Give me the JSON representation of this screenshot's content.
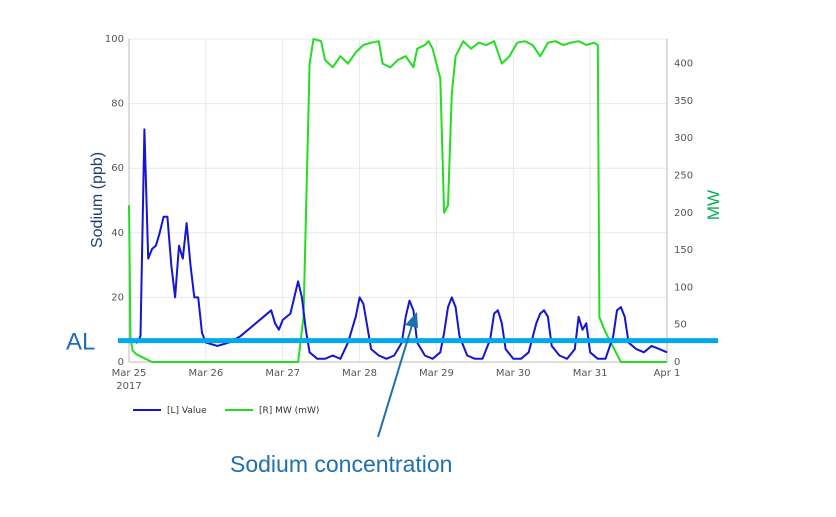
{
  "chart_data": {
    "type": "line",
    "y_left": {
      "label": "Sodium (ppb)",
      "range": [
        0,
        100
      ],
      "ticks": [
        0,
        20,
        40,
        60,
        80,
        100
      ]
    },
    "y_right": {
      "label": "MW",
      "range": [
        0,
        433
      ],
      "ticks": [
        0,
        50,
        100,
        150,
        200,
        250,
        300,
        350,
        400
      ]
    },
    "x": {
      "range": [
        0,
        7
      ],
      "ticks": [
        {
          "pos": 0,
          "label": "Mar 25",
          "sub": "2017"
        },
        {
          "pos": 1,
          "label": "Mar 26",
          "sub": ""
        },
        {
          "pos": 2,
          "label": "Mar 27",
          "sub": ""
        },
        {
          "pos": 3,
          "label": "Mar 28",
          "sub": ""
        },
        {
          "pos": 4,
          "label": "Mar 29",
          "sub": ""
        },
        {
          "pos": 5,
          "label": "Mar 30",
          "sub": ""
        },
        {
          "pos": 6,
          "label": "Mar 31",
          "sub": ""
        },
        {
          "pos": 7,
          "label": "Apr 1",
          "sub": ""
        }
      ]
    },
    "grid": true,
    "series": [
      {
        "name": "[L] Value",
        "axis": "left",
        "color": "#1515d6",
        "points": [
          [
            0,
            7
          ],
          [
            0.05,
            7
          ],
          [
            0.1,
            6
          ],
          [
            0.15,
            8
          ],
          [
            0.2,
            72
          ],
          [
            0.25,
            32
          ],
          [
            0.3,
            35
          ],
          [
            0.35,
            36
          ],
          [
            0.4,
            40
          ],
          [
            0.45,
            45
          ],
          [
            0.5,
            45
          ],
          [
            0.55,
            30
          ],
          [
            0.6,
            20
          ],
          [
            0.65,
            36
          ],
          [
            0.7,
            32
          ],
          [
            0.75,
            43
          ],
          [
            0.8,
            30
          ],
          [
            0.85,
            20
          ],
          [
            0.9,
            20
          ],
          [
            0.95,
            9
          ],
          [
            1.0,
            6
          ],
          [
            1.15,
            5
          ],
          [
            1.3,
            6
          ],
          [
            1.45,
            8
          ],
          [
            1.6,
            11
          ],
          [
            1.75,
            14
          ],
          [
            1.85,
            16
          ],
          [
            1.9,
            12
          ],
          [
            1.95,
            10
          ],
          [
            2.0,
            13
          ],
          [
            2.1,
            15
          ],
          [
            2.2,
            25
          ],
          [
            2.25,
            20
          ],
          [
            2.3,
            10
          ],
          [
            2.35,
            3
          ],
          [
            2.45,
            1
          ],
          [
            2.55,
            1
          ],
          [
            2.65,
            2
          ],
          [
            2.75,
            1
          ],
          [
            2.85,
            6
          ],
          [
            2.95,
            14
          ],
          [
            3.0,
            20
          ],
          [
            3.05,
            18
          ],
          [
            3.1,
            11
          ],
          [
            3.15,
            4
          ],
          [
            3.25,
            2
          ],
          [
            3.35,
            1
          ],
          [
            3.45,
            2
          ],
          [
            3.55,
            6
          ],
          [
            3.6,
            14
          ],
          [
            3.65,
            19
          ],
          [
            3.7,
            16
          ],
          [
            3.75,
            6
          ],
          [
            3.85,
            2
          ],
          [
            3.95,
            1
          ],
          [
            4.05,
            3
          ],
          [
            4.1,
            9
          ],
          [
            4.15,
            17
          ],
          [
            4.2,
            20
          ],
          [
            4.25,
            17
          ],
          [
            4.3,
            8
          ],
          [
            4.4,
            2
          ],
          [
            4.5,
            1
          ],
          [
            4.6,
            1
          ],
          [
            4.7,
            7
          ],
          [
            4.75,
            15
          ],
          [
            4.8,
            16
          ],
          [
            4.85,
            12
          ],
          [
            4.9,
            4
          ],
          [
            5.0,
            1
          ],
          [
            5.1,
            1
          ],
          [
            5.2,
            3
          ],
          [
            5.3,
            12
          ],
          [
            5.35,
            15
          ],
          [
            5.4,
            16
          ],
          [
            5.45,
            14
          ],
          [
            5.5,
            5
          ],
          [
            5.6,
            2
          ],
          [
            5.7,
            1
          ],
          [
            5.8,
            4
          ],
          [
            5.85,
            14
          ],
          [
            5.9,
            10
          ],
          [
            5.95,
            12
          ],
          [
            6.0,
            3
          ],
          [
            6.1,
            1
          ],
          [
            6.2,
            1
          ],
          [
            6.3,
            8
          ],
          [
            6.35,
            16
          ],
          [
            6.4,
            17
          ],
          [
            6.45,
            14
          ],
          [
            6.5,
            6
          ],
          [
            6.6,
            4
          ],
          [
            6.7,
            3
          ],
          [
            6.8,
            5
          ],
          [
            6.9,
            4
          ],
          [
            7.0,
            3
          ]
        ]
      },
      {
        "name": "[R] MW (mW)",
        "axis": "right",
        "color": "#22dd22",
        "points": [
          [
            0,
            210
          ],
          [
            0.02,
            30
          ],
          [
            0.05,
            15
          ],
          [
            0.1,
            10
          ],
          [
            0.2,
            5
          ],
          [
            0.3,
            0
          ],
          [
            1.0,
            0
          ],
          [
            2.0,
            0
          ],
          [
            2.2,
            0
          ],
          [
            2.27,
            60
          ],
          [
            2.35,
            400
          ],
          [
            2.4,
            433
          ],
          [
            2.5,
            430
          ],
          [
            2.55,
            405
          ],
          [
            2.65,
            395
          ],
          [
            2.75,
            410
          ],
          [
            2.85,
            400
          ],
          [
            2.95,
            415
          ],
          [
            3.05,
            425
          ],
          [
            3.15,
            428
          ],
          [
            3.25,
            430
          ],
          [
            3.3,
            400
          ],
          [
            3.4,
            395
          ],
          [
            3.5,
            405
          ],
          [
            3.6,
            410
          ],
          [
            3.7,
            395
          ],
          [
            3.75,
            420
          ],
          [
            3.85,
            425
          ],
          [
            3.9,
            430
          ],
          [
            3.95,
            420
          ],
          [
            4.0,
            400
          ],
          [
            4.05,
            380
          ],
          [
            4.1,
            200
          ],
          [
            4.15,
            210
          ],
          [
            4.2,
            360
          ],
          [
            4.25,
            410
          ],
          [
            4.35,
            430
          ],
          [
            4.45,
            420
          ],
          [
            4.55,
            428
          ],
          [
            4.65,
            425
          ],
          [
            4.75,
            430
          ],
          [
            4.85,
            400
          ],
          [
            4.95,
            410
          ],
          [
            5.05,
            428
          ],
          [
            5.15,
            430
          ],
          [
            5.25,
            425
          ],
          [
            5.35,
            410
          ],
          [
            5.45,
            428
          ],
          [
            5.55,
            430
          ],
          [
            5.65,
            425
          ],
          [
            5.75,
            428
          ],
          [
            5.85,
            430
          ],
          [
            5.95,
            425
          ],
          [
            6.05,
            428
          ],
          [
            6.1,
            425
          ],
          [
            6.12,
            60
          ],
          [
            6.2,
            40
          ],
          [
            6.3,
            20
          ],
          [
            6.4,
            0
          ],
          [
            7.0,
            0
          ]
        ]
      }
    ],
    "legend": {
      "placement": "bottom-left"
    },
    "annotations": [
      {
        "label": "AL",
        "type": "horizontal-line",
        "value": 6,
        "color": "#00a8f0"
      },
      {
        "label": "Sodium concentration",
        "type": "arrow-callout",
        "target": [
          4.0,
          12
        ],
        "color": "#1f6fb2"
      }
    ]
  }
}
